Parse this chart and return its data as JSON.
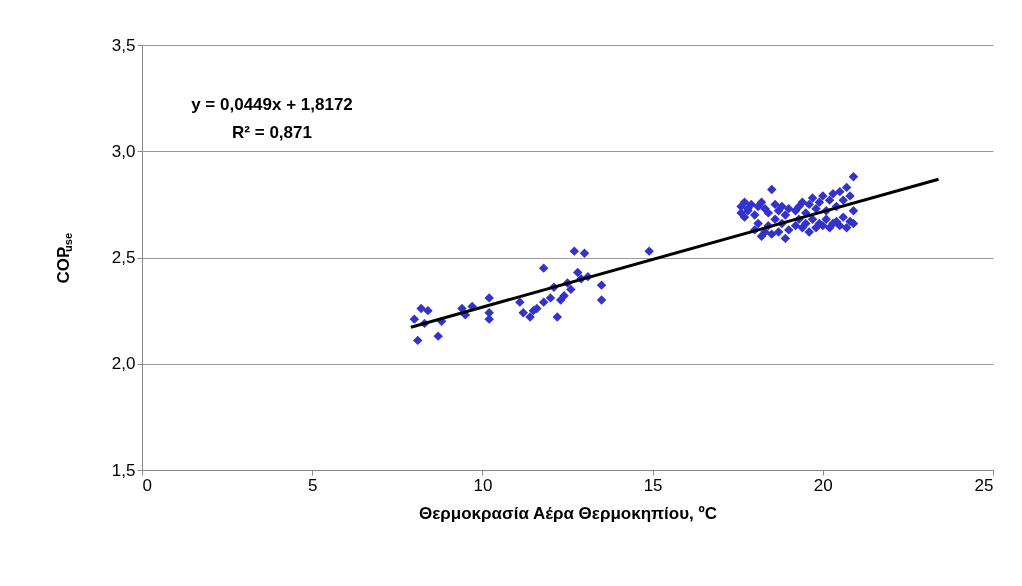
{
  "chart_data": {
    "type": "scatter",
    "xlabel": "Θερμοκρασία Αέρα Θερμοκηπίου, ºC",
    "ylabel": "COP$_{use}$",
    "annotations": [
      "y = 0,0449x + 1,8172",
      "R² = 0,871"
    ],
    "xlim": [
      0,
      25
    ],
    "xticks": [
      0,
      5,
      10,
      15,
      20,
      25
    ],
    "ylim": [
      1.5,
      3.5
    ],
    "yticks": [
      {
        "value": 1.5,
        "label": "1,5"
      },
      {
        "value": 2.0,
        "label": "2,0"
      },
      {
        "value": 2.5,
        "label": "2,5"
      },
      {
        "value": 3.0,
        "label": "3,0"
      },
      {
        "value": 3.5,
        "label": "3,5"
      }
    ],
    "grid": "y",
    "series": [
      {
        "type": "scatter",
        "color": "#3333cc",
        "marker": "diamond",
        "x": [
          8.0,
          8.1,
          8.2,
          8.3,
          8.4,
          8.7,
          8.8,
          9.4,
          9.5,
          9.7,
          10.2,
          10.2,
          10.2,
          11.1,
          11.2,
          11.4,
          11.5,
          11.6,
          11.8,
          11.8,
          12.0,
          12.1,
          12.2,
          12.3,
          12.4,
          12.5,
          12.6,
          12.7,
          12.8,
          12.9,
          13.0,
          13.1,
          13.5,
          13.5,
          14.9,
          17.6,
          17.6,
          17.7,
          17.7,
          17.8,
          17.8,
          17.9,
          18.0,
          18.0,
          18.1,
          18.1,
          18.2,
          18.2,
          18.3,
          18.3,
          18.4,
          18.4,
          18.5,
          18.5,
          18.6,
          18.6,
          18.7,
          18.7,
          18.8,
          18.8,
          18.9,
          18.9,
          19.0,
          19.0,
          19.2,
          19.2,
          19.3,
          19.3,
          19.4,
          19.4,
          19.5,
          19.5,
          19.6,
          19.6,
          19.7,
          19.7,
          19.8,
          19.8,
          19.9,
          19.9,
          20.0,
          20.0,
          20.1,
          20.1,
          20.2,
          20.2,
          20.3,
          20.3,
          20.4,
          20.4,
          20.5,
          20.5,
          20.6,
          20.6,
          20.7,
          20.7,
          20.8,
          20.8,
          20.9,
          20.9,
          20.9
        ],
        "values": [
          2.21,
          2.11,
          2.26,
          2.19,
          2.25,
          2.13,
          2.2,
          2.26,
          2.23,
          2.27,
          2.31,
          2.24,
          2.21,
          2.29,
          2.24,
          2.22,
          2.25,
          2.26,
          2.29,
          2.45,
          2.31,
          2.36,
          2.22,
          2.3,
          2.32,
          2.38,
          2.35,
          2.53,
          2.43,
          2.4,
          2.52,
          2.41,
          2.37,
          2.3,
          2.53,
          2.71,
          2.74,
          2.69,
          2.76,
          2.72,
          2.73,
          2.75,
          2.63,
          2.7,
          2.66,
          2.74,
          2.6,
          2.76,
          2.62,
          2.73,
          2.65,
          2.71,
          2.82,
          2.61,
          2.68,
          2.75,
          2.62,
          2.72,
          2.66,
          2.74,
          2.59,
          2.7,
          2.63,
          2.73,
          2.65,
          2.72,
          2.68,
          2.74,
          2.64,
          2.76,
          2.66,
          2.71,
          2.62,
          2.75,
          2.68,
          2.78,
          2.64,
          2.73,
          2.66,
          2.76,
          2.65,
          2.79,
          2.68,
          2.72,
          2.64,
          2.77,
          2.66,
          2.8,
          2.67,
          2.74,
          2.65,
          2.81,
          2.69,
          2.77,
          2.64,
          2.83,
          2.67,
          2.79,
          2.88,
          2.66,
          2.72
        ]
      },
      {
        "type": "line",
        "color": "#000000",
        "line_style": "solid",
        "x": [
          7.9,
          23.4
        ],
        "values": [
          2.172,
          2.868
        ]
      }
    ]
  }
}
